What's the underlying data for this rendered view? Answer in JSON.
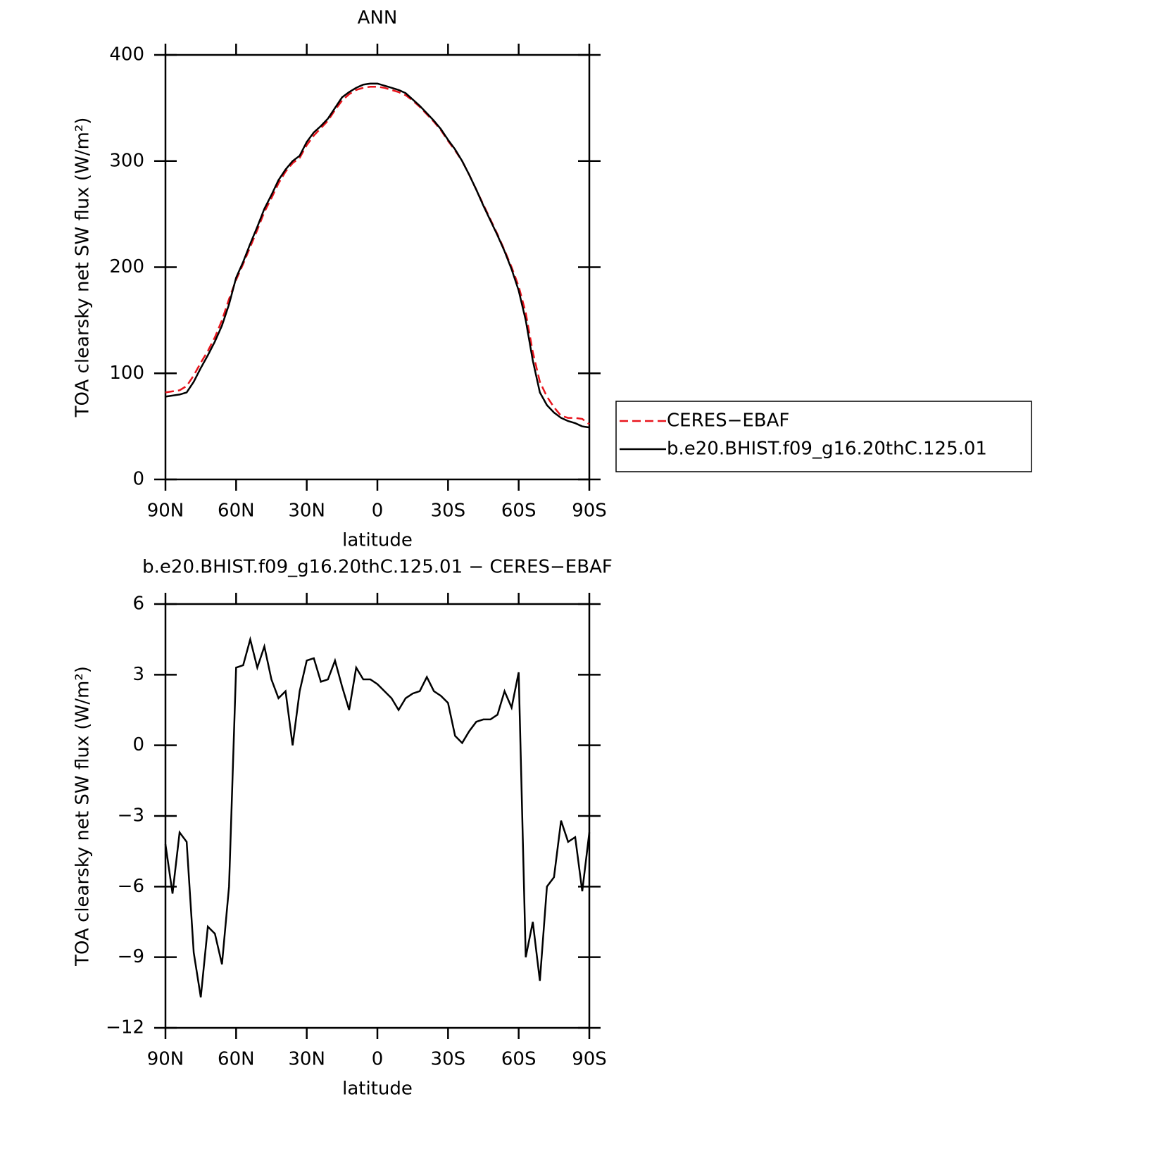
{
  "chart_data": [
    {
      "type": "line",
      "title": "ANN",
      "xlabel": "latitude",
      "ylabel": "TOA clearsky net SW flux (W/m²)",
      "x": [
        90,
        87,
        84,
        81,
        78,
        75,
        72,
        69,
        66,
        63,
        60,
        57,
        54,
        51,
        48,
        45,
        42,
        39,
        36,
        33,
        30,
        27,
        24,
        21,
        18,
        15,
        12,
        9,
        6,
        3,
        0,
        -3,
        -6,
        -9,
        -12,
        -15,
        -18,
        -21,
        -24,
        -27,
        -30,
        -33,
        -36,
        -39,
        -42,
        -45,
        -48,
        -51,
        -54,
        -57,
        -60,
        -63,
        -66,
        -69,
        -72,
        -75,
        -78,
        -81,
        -84,
        -87,
        -90
      ],
      "series": [
        {
          "name": "CERES−EBAF",
          "color": "#e8141c",
          "dash": true,
          "values": [
            82,
            83,
            84,
            88,
            98,
            110,
            121,
            134,
            150,
            170,
            188,
            203,
            219,
            235,
            252,
            265,
            279,
            290,
            298,
            303,
            315,
            324,
            331,
            338,
            348,
            357,
            363,
            367,
            369,
            370,
            370,
            369,
            367,
            365,
            362,
            357,
            351,
            344,
            337,
            329,
            319,
            310,
            300,
            287,
            273,
            259,
            245,
            231,
            216,
            200,
            182,
            157,
            120,
            92,
            78,
            68,
            60,
            58,
            58,
            57,
            52
          ]
        },
        {
          "name": "b.e20.BHIST.f09_g16.20thC.125.01",
          "color": "#000000",
          "dash": false,
          "values": [
            78,
            79,
            80,
            82,
            92,
            105,
            117,
            130,
            145,
            165,
            190,
            205,
            222,
            238,
            255,
            268,
            282,
            292,
            300,
            305,
            318,
            327,
            333,
            340,
            350,
            360,
            365,
            369,
            372,
            373,
            373,
            371,
            369,
            367,
            364,
            358,
            352,
            345,
            338,
            330,
            320,
            311,
            300,
            287,
            273,
            258,
            244,
            230,
            215,
            198,
            178,
            150,
            112,
            82,
            70,
            63,
            58,
            55,
            53,
            50,
            49
          ]
        }
      ],
      "xlim": [
        90,
        -90
      ],
      "xticks": [
        {
          "value": 90,
          "label": "90N"
        },
        {
          "value": 60,
          "label": "60N"
        },
        {
          "value": 30,
          "label": "30N"
        },
        0,
        {
          "value": -30,
          "label": "30S"
        },
        {
          "value": -60,
          "label": "60S"
        },
        {
          "value": -90,
          "label": "90S"
        }
      ],
      "ylim": [
        0,
        400
      ],
      "yticks": [
        0,
        100,
        200,
        300,
        400
      ],
      "legend": "outside-right"
    },
    {
      "type": "line",
      "title": "b.e20.BHIST.f09_g16.20thC.125.01 − CERES−EBAF",
      "xlabel": "latitude",
      "ylabel": "TOA clearsky net SW flux (W/m²)",
      "x": [
        90,
        87,
        84,
        81,
        78,
        75,
        72,
        69,
        66,
        63,
        60,
        57,
        54,
        51,
        48,
        45,
        42,
        39,
        36,
        33,
        30,
        27,
        24,
        21,
        18,
        15,
        12,
        9,
        6,
        3,
        0,
        -3,
        -6,
        -9,
        -12,
        -15,
        -18,
        -21,
        -24,
        -27,
        -30,
        -33,
        -36,
        -39,
        -42,
        -45,
        -48,
        -51,
        -54,
        -57,
        -60,
        -63,
        -66,
        -69,
        -72,
        -75,
        -78,
        -81,
        -84,
        -87,
        -90
      ],
      "series": [
        {
          "color": "#000000",
          "dash": false,
          "values": [
            -4.2,
            -6.3,
            -3.7,
            -4.1,
            -8.8,
            -10.7,
            -7.7,
            -8.0,
            -9.3,
            -6.0,
            3.3,
            3.4,
            4.5,
            3.3,
            4.2,
            2.8,
            2.0,
            2.3,
            0.0,
            2.3,
            3.6,
            3.7,
            2.7,
            2.8,
            3.6,
            2.5,
            1.5,
            3.3,
            2.8,
            2.8,
            2.6,
            2.3,
            2.0,
            1.5,
            2.0,
            2.2,
            2.3,
            2.9,
            2.3,
            2.1,
            1.8,
            0.4,
            0.1,
            0.6,
            1.0,
            1.1,
            1.1,
            1.3,
            2.3,
            1.6,
            3.1,
            -9.0,
            -7.5,
            -10.0,
            -6.0,
            -5.6,
            -3.2,
            -4.1,
            -3.9,
            -6.2,
            -3.7
          ]
        }
      ],
      "xlim": [
        90,
        -90
      ],
      "xticks": [
        {
          "value": 90,
          "label": "90N"
        },
        {
          "value": 60,
          "label": "60N"
        },
        {
          "value": 30,
          "label": "30N"
        },
        0,
        {
          "value": -30,
          "label": "30S"
        },
        {
          "value": -60,
          "label": "60S"
        },
        {
          "value": -90,
          "label": "90S"
        }
      ],
      "ylim": [
        -12,
        6
      ],
      "yticks": [
        {
          "value": -12,
          "label": "−12"
        },
        {
          "value": -9,
          "label": "−9"
        },
        {
          "value": -6,
          "label": "−6"
        },
        {
          "value": -3,
          "label": "−3"
        },
        0,
        3,
        6
      ]
    }
  ]
}
